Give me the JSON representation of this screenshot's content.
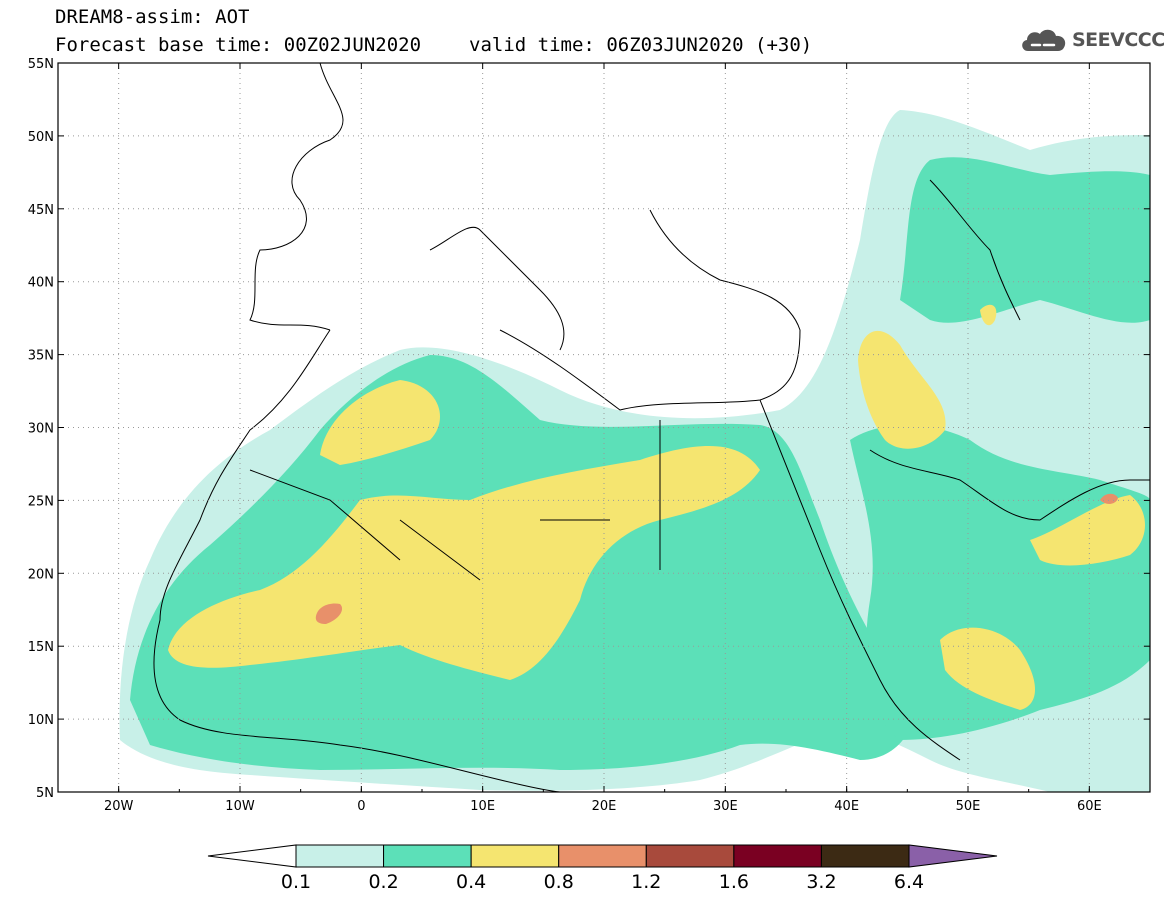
{
  "header": {
    "title": "DREAM8-assim: AOT",
    "base_time": "Forecast base time: 00Z02JUN2020",
    "valid_time": "valid time: 06Z03JUN2020 (+30)"
  },
  "logo": {
    "text": "SEEVCCC",
    "icon": "cloud-icon"
  },
  "map": {
    "lon_range": [
      -25,
      65
    ],
    "lat_range": [
      5,
      55
    ],
    "lat_ticks": [
      "5N",
      "10N",
      "15N",
      "20N",
      "25N",
      "30N",
      "35N",
      "40N",
      "45N",
      "50N",
      "55N"
    ],
    "lon_ticks": [
      "20W",
      "10W",
      "0",
      "10E",
      "20E",
      "30E",
      "40E",
      "50E",
      "60E"
    ],
    "gridlines": "dotted"
  },
  "colorbar": {
    "colors": [
      "#ffffff",
      "#c8f0e8",
      "#5ce0b8",
      "#f5e570",
      "#e8906a",
      "#a84a3c",
      "#7a0022",
      "#3c2a14",
      "#8a60a8"
    ],
    "labels": [
      "0.1",
      "0.2",
      "0.4",
      "0.8",
      "1.2",
      "1.6",
      "3.2",
      "6.4"
    ]
  }
}
